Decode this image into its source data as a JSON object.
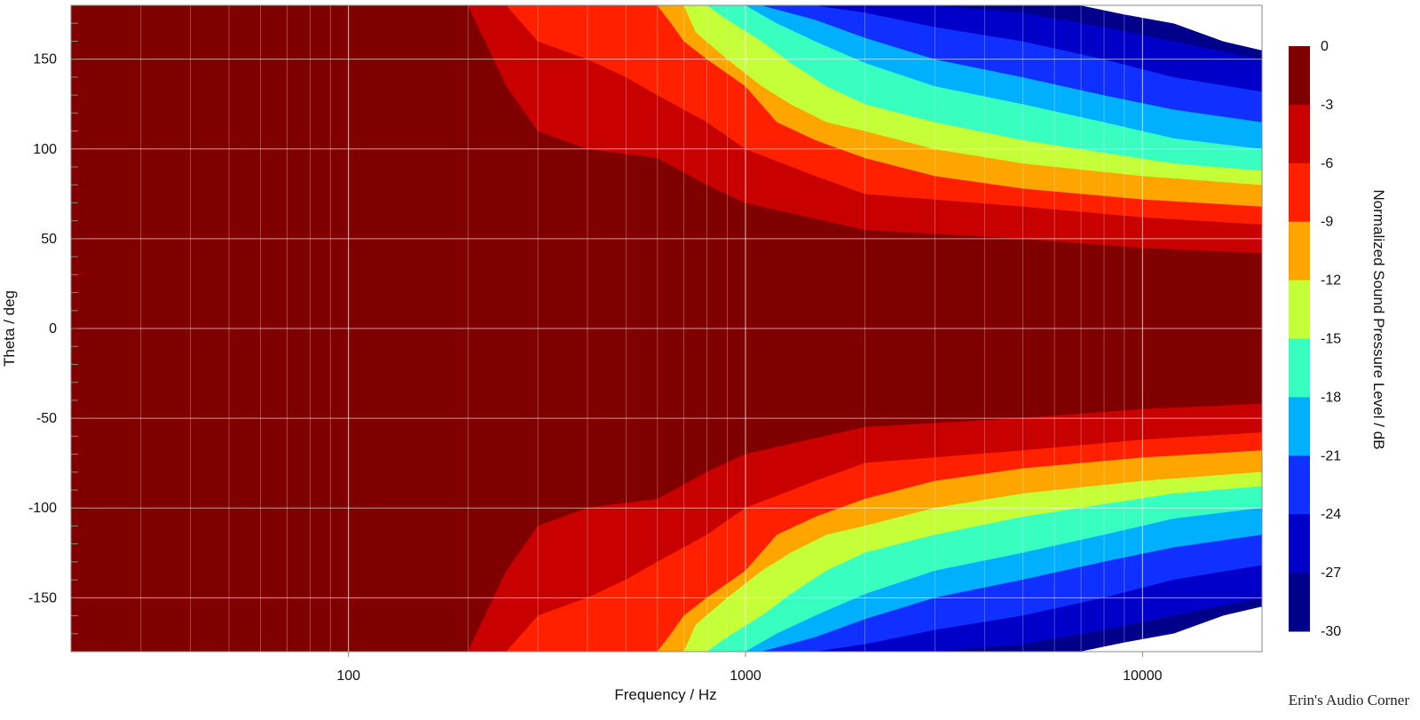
{
  "watermark": "Erin's Audio Corner",
  "chart_data": {
    "type": "heatmap",
    "subtype": "filled-contour (polar directivity map)",
    "xlabel": "Frequency / Hz",
    "ylabel": "Theta / deg",
    "colorbar_label": "Normalized Sound Pressure Level / dB",
    "x_scale": "log",
    "xlim": [
      20,
      20000
    ],
    "ylim": [
      -180,
      180
    ],
    "x_ticks": [
      {
        "value": 100,
        "label": "100"
      },
      {
        "value": 1000,
        "label": "1000"
      },
      {
        "value": 10000,
        "label": "10000"
      }
    ],
    "y_ticks": [
      {
        "value": 150,
        "label": "150"
      },
      {
        "value": 100,
        "label": "100"
      },
      {
        "value": 50,
        "label": "50"
      },
      {
        "value": 0,
        "label": "0"
      },
      {
        "value": -50,
        "label": "-50"
      },
      {
        "value": -100,
        "label": "-100"
      },
      {
        "value": -150,
        "label": "-150"
      }
    ],
    "grid": true,
    "legend": "colorbar-right",
    "levels": [
      {
        "max": 0,
        "min": -3,
        "label": "0",
        "color": "#800000"
      },
      {
        "max": -3,
        "min": -6,
        "label": "-3",
        "color": "#c80000"
      },
      {
        "max": -6,
        "min": -9,
        "label": "-6",
        "color": "#ff2000"
      },
      {
        "max": -9,
        "min": -12,
        "label": "-9",
        "color": "#ffa500"
      },
      {
        "max": -12,
        "min": -15,
        "label": "-12",
        "color": "#c4ff38"
      },
      {
        "max": -15,
        "min": -18,
        "label": "-15",
        "color": "#38ffc0"
      },
      {
        "max": -18,
        "min": -21,
        "label": "-18",
        "color": "#00b0ff"
      },
      {
        "max": -21,
        "min": -24,
        "label": "-21",
        "color": "#1030ff"
      },
      {
        "max": -24,
        "min": -27,
        "label": "-24",
        "color": "#0000c8"
      },
      {
        "max": -27,
        "min": -30,
        "label": "-27",
        "color": "#00008b"
      }
    ],
    "bottom_label": "-30",
    "below_min_color": "#ffffff",
    "contour_boundaries_deg": [
      {
        "level": -3,
        "points": [
          [
            20,
            180
          ],
          [
            200,
            180
          ],
          [
            250,
            135
          ],
          [
            300,
            110
          ],
          [
            400,
            100
          ],
          [
            600,
            95
          ],
          [
            800,
            80
          ],
          [
            1000,
            70
          ],
          [
            2000,
            55
          ],
          [
            5000,
            50
          ],
          [
            10000,
            45
          ],
          [
            20000,
            42
          ]
        ]
      },
      {
        "level": -6,
        "points": [
          [
            20,
            180
          ],
          [
            250,
            180
          ],
          [
            300,
            160
          ],
          [
            400,
            150
          ],
          [
            500,
            140
          ],
          [
            600,
            130
          ],
          [
            800,
            115
          ],
          [
            1000,
            100
          ],
          [
            1500,
            85
          ],
          [
            2000,
            75
          ],
          [
            5000,
            68
          ],
          [
            10000,
            62
          ],
          [
            20000,
            58
          ]
        ]
      },
      {
        "level": -9,
        "points": [
          [
            20,
            180
          ],
          [
            600,
            180
          ],
          [
            650,
            170
          ],
          [
            700,
            160
          ],
          [
            800,
            150
          ],
          [
            1000,
            135
          ],
          [
            1200,
            115
          ],
          [
            1500,
            105
          ],
          [
            2000,
            95
          ],
          [
            3000,
            85
          ],
          [
            5000,
            78
          ],
          [
            10000,
            72
          ],
          [
            20000,
            68
          ]
        ]
      },
      {
        "level": -12,
        "points": [
          [
            20,
            180
          ],
          [
            700,
            180
          ],
          [
            750,
            165
          ],
          [
            900,
            150
          ],
          [
            1100,
            135
          ],
          [
            1300,
            125
          ],
          [
            1600,
            115
          ],
          [
            2000,
            110
          ],
          [
            3000,
            100
          ],
          [
            5000,
            92
          ],
          [
            10000,
            85
          ],
          [
            20000,
            80
          ]
        ]
      },
      {
        "level": -15,
        "points": [
          [
            20,
            180
          ],
          [
            800,
            180
          ],
          [
            900,
            172
          ],
          [
            1100,
            160
          ],
          [
            1300,
            148
          ],
          [
            1600,
            135
          ],
          [
            2000,
            125
          ],
          [
            3000,
            115
          ],
          [
            5000,
            105
          ],
          [
            8000,
            98
          ],
          [
            12000,
            92
          ],
          [
            20000,
            88
          ]
        ]
      },
      {
        "level": -18,
        "points": [
          [
            20,
            180
          ],
          [
            1000,
            180
          ],
          [
            1200,
            170
          ],
          [
            1500,
            160
          ],
          [
            2000,
            148
          ],
          [
            3000,
            135
          ],
          [
            5000,
            125
          ],
          [
            8000,
            115
          ],
          [
            12000,
            106
          ],
          [
            20000,
            100
          ]
        ]
      },
      {
        "level": -21,
        "points": [
          [
            20,
            180
          ],
          [
            1100,
            180
          ],
          [
            1500,
            172
          ],
          [
            2000,
            162
          ],
          [
            3000,
            150
          ],
          [
            5000,
            140
          ],
          [
            8000,
            130
          ],
          [
            12000,
            122
          ],
          [
            20000,
            115
          ]
        ]
      },
      {
        "level": -24,
        "points": [
          [
            20,
            180
          ],
          [
            1500,
            180
          ],
          [
            2000,
            176
          ],
          [
            3000,
            168
          ],
          [
            5000,
            160
          ],
          [
            8000,
            150
          ],
          [
            12000,
            140
          ],
          [
            20000,
            132
          ]
        ]
      },
      {
        "level": -27,
        "points": [
          [
            20,
            180
          ],
          [
            3000,
            180
          ],
          [
            5000,
            176
          ],
          [
            8000,
            168
          ],
          [
            12000,
            160
          ],
          [
            20000,
            150
          ]
        ]
      },
      {
        "level": -30,
        "points": [
          [
            20,
            180
          ],
          [
            7000,
            180
          ],
          [
            9000,
            175
          ],
          [
            12000,
            170
          ],
          [
            16000,
            160
          ],
          [
            20000,
            155
          ]
        ]
      }
    ]
  }
}
